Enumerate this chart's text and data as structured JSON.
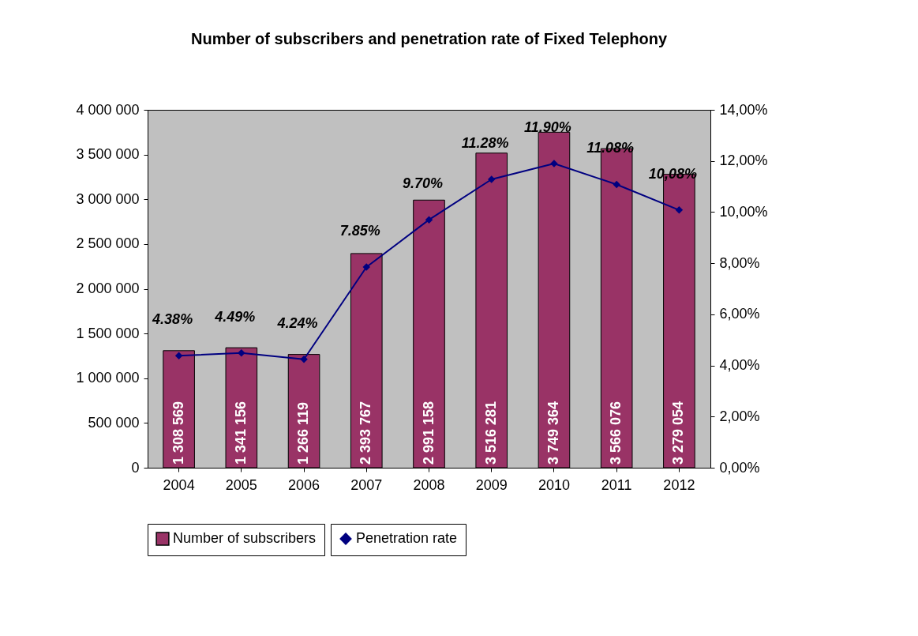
{
  "chart_data": {
    "type": "bar",
    "title": "Number of subscribers and penetration rate of Fixed Telephony",
    "categories": [
      "2004",
      "2005",
      "2006",
      "2007",
      "2008",
      "2009",
      "2010",
      "2011",
      "2012"
    ],
    "series": [
      {
        "name": "Number of subscribers",
        "color": "#993366",
        "values": [
          1308569,
          1341156,
          1266119,
          2393767,
          2991158,
          3516281,
          3749364,
          3566076,
          3279054
        ],
        "value_labels": [
          "1 308 569",
          "1 341 156",
          "1 266 119",
          "2 393 767",
          "2 991 158",
          "3 516 281",
          "3 749 364",
          "3 566 076",
          "3 279 054"
        ]
      },
      {
        "name": "Penetration rate",
        "type": "line",
        "axis": "y2",
        "color": "#000080",
        "values": [
          4.38,
          4.49,
          4.24,
          7.85,
          9.7,
          11.28,
          11.9,
          11.08,
          10.08
        ],
        "value_labels": [
          "4.38%",
          "4.49%",
          "4.24%",
          "7.85%",
          "9.70%",
          "11.28%",
          "11.90%",
          "11.08%",
          "10,08%"
        ]
      }
    ],
    "ylim": [
      0,
      4000000
    ],
    "yticks": [
      {
        "value": 0,
        "label": "0"
      },
      {
        "value": 500000,
        "label": "500 000"
      },
      {
        "value": 1000000,
        "label": "1 000 000"
      },
      {
        "value": 1500000,
        "label": "1 500 000"
      },
      {
        "value": 2000000,
        "label": "2 000 000"
      },
      {
        "value": 2500000,
        "label": "2 500 000"
      },
      {
        "value": 3000000,
        "label": "3 000 000"
      },
      {
        "value": 3500000,
        "label": "3 500 000"
      },
      {
        "value": 4000000,
        "label": "4 000 000"
      }
    ],
    "y2lim": [
      0,
      14
    ],
    "y2ticks": [
      {
        "value": 0,
        "label": "0,00%"
      },
      {
        "value": 2,
        "label": "2,00%"
      },
      {
        "value": 4,
        "label": "4,00%"
      },
      {
        "value": 6,
        "label": "6,00%"
      },
      {
        "value": 8,
        "label": "8,00%"
      },
      {
        "value": 10,
        "label": "10,00%"
      },
      {
        "value": 12,
        "label": "12,00%"
      },
      {
        "value": 14,
        "label": "14,00%"
      }
    ],
    "marker": "diamond",
    "line_style": "solid",
    "legend": "bottom"
  }
}
